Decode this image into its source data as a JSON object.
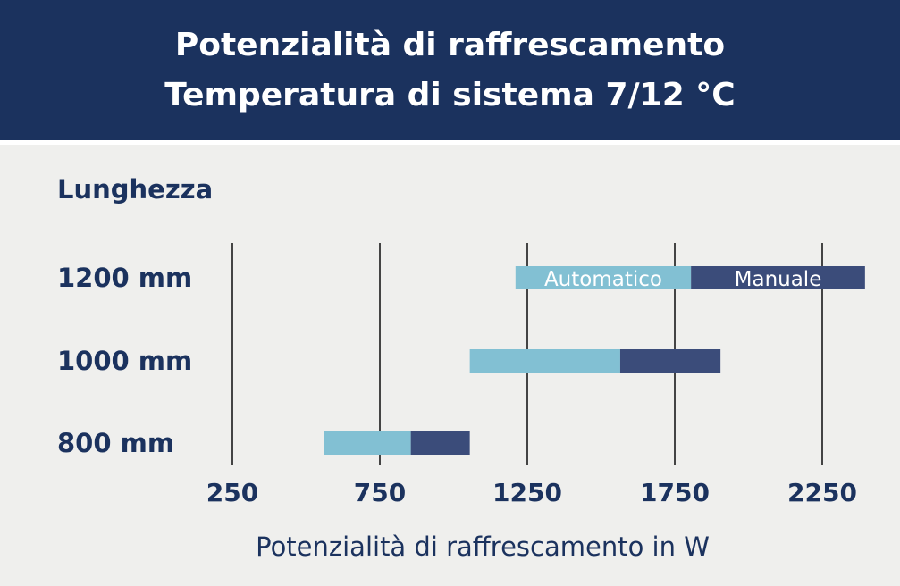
{
  "header": {
    "title_line1": "Potenzialità di raffrescamento",
    "title_line2": "Temperatura di sistema 7/12 °C"
  },
  "chart_data": {
    "type": "bar",
    "subtype": "floating-stacked-horizontal",
    "y_title": "Lunghezza",
    "xlabel": "Potenzialità di raffrescamento in W",
    "x_ticks": [
      250,
      750,
      1250,
      1750,
      2250
    ],
    "x_tick_labels": [
      "250",
      "750",
      "1250",
      "1750",
      "2250"
    ],
    "xlim": [
      250,
      2250
    ],
    "grid": "vertical",
    "categories": [
      "1200 mm",
      "1000 mm",
      "800 mm"
    ],
    "series": [
      {
        "name": "Automatico",
        "color": "#82c0d3",
        "ranges": [
          [
            1210,
            1805
          ],
          [
            1055,
            1565
          ],
          [
            560,
            855
          ]
        ]
      },
      {
        "name": "Manuale",
        "color": "#3b4c7a",
        "ranges": [
          [
            1805,
            2395
          ],
          [
            1565,
            1905
          ],
          [
            855,
            1055
          ]
        ]
      }
    ],
    "series_labels_row": "1200 mm"
  },
  "colors": {
    "header_bg": "#1b325e",
    "text": "#1b325e",
    "background": "#efefed",
    "gridline": "#444444"
  }
}
